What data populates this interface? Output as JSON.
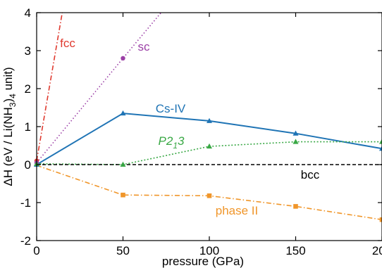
{
  "chart_data": {
    "type": "line",
    "xlabel": "pressure (GPa)",
    "ylabel": {
      "prefix": "ΔH (eV / Li(NH",
      "sub1": "3",
      "mid": ")",
      "sub2": "4",
      "suffix": " unit)"
    },
    "xlim": [
      0,
      200
    ],
    "ylim": [
      -2,
      4
    ],
    "xticks": [
      0,
      50,
      100,
      150,
      200
    ],
    "yticks": [
      -2,
      -1,
      0,
      1,
      2,
      3,
      4
    ],
    "grid": false,
    "legend": "none",
    "series": [
      {
        "name": "fcc",
        "color": "#e03a2f",
        "line": "dashdot",
        "marker": "circle",
        "x": [
          0,
          15
        ],
        "y": [
          0.1,
          4.05
        ],
        "marked": [
          true,
          false
        ]
      },
      {
        "name": "sc",
        "color": "#9b3fa6",
        "line": "dotted",
        "marker": "circle",
        "x": [
          0,
          50,
          73
        ],
        "y": [
          0.05,
          2.8,
          4.05
        ],
        "marked": [
          true,
          true,
          false
        ]
      },
      {
        "name": "Cs-IV",
        "color": "#1f74b5",
        "line": "solid",
        "marker": "triangle",
        "x": [
          0,
          50,
          100,
          150,
          200
        ],
        "y": [
          0.0,
          1.35,
          1.15,
          0.82,
          0.42
        ],
        "marked": [
          true,
          true,
          true,
          true,
          true
        ]
      },
      {
        "name": "P2₁3",
        "label_parts": [
          "P2",
          "1",
          "3"
        ],
        "color": "#39a845",
        "line": "dotted-dense",
        "marker": "triangle",
        "x": [
          0,
          50,
          100,
          150,
          200
        ],
        "y": [
          0.02,
          0.0,
          0.48,
          0.6,
          0.6
        ],
        "marked": [
          true,
          true,
          true,
          true,
          true
        ]
      },
      {
        "name": "bcc",
        "color": "#000000",
        "line": "dashed",
        "marker": "none",
        "x": [
          0,
          200
        ],
        "y": [
          0,
          0
        ],
        "marked": [
          false,
          false
        ]
      },
      {
        "name": "phase II",
        "color": "#f0962a",
        "line": "dashdot",
        "marker": "square",
        "x": [
          0,
          50,
          100,
          150,
          200
        ],
        "y": [
          -0.02,
          -0.8,
          -0.82,
          -1.1,
          -1.45
        ],
        "marked": [
          false,
          true,
          true,
          true,
          true
        ]
      }
    ]
  }
}
